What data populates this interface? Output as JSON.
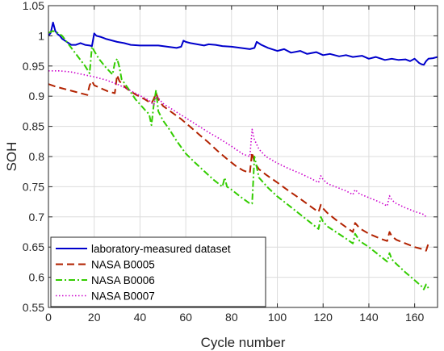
{
  "chart_data": {
    "type": "line",
    "title": "",
    "xlabel": "Cycle number",
    "ylabel": "SOH",
    "xlim": [
      0,
      170
    ],
    "ylim": [
      0.55,
      1.05
    ],
    "xticks": [
      0,
      20,
      40,
      60,
      80,
      100,
      120,
      140,
      160
    ],
    "yticks": [
      0.55,
      0.6,
      0.65,
      0.7,
      0.75,
      0.8,
      0.85,
      0.9,
      0.95,
      1,
      1.05
    ],
    "xtick_labels": [
      "0",
      "20",
      "40",
      "60",
      "80",
      "100",
      "120",
      "140",
      "160"
    ],
    "ytick_labels": [
      "0.55",
      "0.6",
      "0.65",
      "0.7",
      "0.75",
      "0.8",
      "0.85",
      "0.9",
      "0.95",
      "1",
      "1.05"
    ],
    "grid": true,
    "legend_position": "bottom-left",
    "series": [
      {
        "name": "laboratory-measured dataset",
        "color": "#0000cc",
        "dash": "solid",
        "x": [
          0,
          1,
          2,
          3,
          4,
          5,
          6,
          8,
          10,
          12,
          14,
          16,
          18,
          19,
          20,
          21,
          23,
          25,
          27,
          30,
          33,
          36,
          40,
          44,
          48,
          52,
          56,
          58,
          59,
          60,
          62,
          65,
          68,
          70,
          73,
          76,
          80,
          84,
          88,
          90,
          91,
          93,
          96,
          100,
          103,
          106,
          110,
          113,
          117,
          120,
          123,
          127,
          130,
          133,
          137,
          140,
          143,
          147,
          150,
          153,
          156,
          158,
          160,
          162,
          163,
          164,
          165,
          166,
          168,
          170
        ],
        "y": [
          1.0,
          1.005,
          1.022,
          1.008,
          1.003,
          1.0,
          0.995,
          0.99,
          0.985,
          0.985,
          0.988,
          0.985,
          0.984,
          0.983,
          1.004,
          1.0,
          0.998,
          0.995,
          0.993,
          0.99,
          0.988,
          0.985,
          0.984,
          0.984,
          0.984,
          0.982,
          0.98,
          0.982,
          0.992,
          0.99,
          0.988,
          0.986,
          0.984,
          0.986,
          0.985,
          0.983,
          0.982,
          0.98,
          0.978,
          0.98,
          0.99,
          0.985,
          0.98,
          0.975,
          0.978,
          0.972,
          0.975,
          0.97,
          0.973,
          0.968,
          0.97,
          0.966,
          0.968,
          0.965,
          0.967,
          0.962,
          0.965,
          0.96,
          0.962,
          0.96,
          0.961,
          0.958,
          0.962,
          0.955,
          0.953,
          0.952,
          0.958,
          0.962,
          0.963,
          0.965
        ]
      },
      {
        "name": "NASA B0005",
        "color": "#b22200",
        "dash": "dashed",
        "x": [
          0,
          3,
          6,
          10,
          14,
          17,
          18,
          19,
          20,
          23,
          26,
          29,
          30,
          31,
          34,
          38,
          42,
          45,
          46,
          47,
          48,
          50,
          54,
          58,
          62,
          66,
          70,
          74,
          78,
          82,
          85,
          88,
          89,
          90,
          92,
          95,
          100,
          105,
          110,
          115,
          118,
          119,
          120,
          122,
          126,
          130,
          133,
          134,
          136,
          140,
          145,
          148,
          149,
          150,
          152,
          156,
          160,
          164,
          165,
          166
        ],
        "y": [
          0.92,
          0.916,
          0.913,
          0.909,
          0.905,
          0.902,
          0.918,
          0.925,
          0.918,
          0.913,
          0.908,
          0.905,
          0.935,
          0.925,
          0.913,
          0.903,
          0.895,
          0.888,
          0.895,
          0.905,
          0.895,
          0.884,
          0.873,
          0.862,
          0.849,
          0.836,
          0.823,
          0.809,
          0.796,
          0.784,
          0.777,
          0.773,
          0.807,
          0.79,
          0.779,
          0.77,
          0.757,
          0.743,
          0.73,
          0.716,
          0.708,
          0.72,
          0.714,
          0.706,
          0.694,
          0.683,
          0.675,
          0.69,
          0.681,
          0.672,
          0.664,
          0.66,
          0.675,
          0.668,
          0.662,
          0.656,
          0.65,
          0.646,
          0.644,
          0.656
        ]
      },
      {
        "name": "NASA B0006",
        "color": "#33cc00",
        "dash": "dashdot",
        "x": [
          0,
          2,
          4,
          6,
          8,
          10,
          13,
          16,
          18,
          19,
          20,
          22,
          25,
          28,
          29,
          30,
          31,
          32,
          35,
          38,
          42,
          44,
          45,
          46,
          47,
          48,
          50,
          53,
          56,
          60,
          64,
          68,
          72,
          76,
          77,
          78,
          80,
          84,
          88,
          89,
          90,
          92,
          96,
          100,
          104,
          108,
          112,
          116,
          118,
          119,
          120,
          122,
          126,
          130,
          133,
          134,
          136,
          140,
          144,
          148,
          149,
          150,
          152,
          156,
          160,
          163,
          164,
          165,
          166
        ],
        "y": [
          1.005,
          1.008,
          1.005,
          1.0,
          0.99,
          0.98,
          0.965,
          0.95,
          0.938,
          0.982,
          0.975,
          0.962,
          0.948,
          0.936,
          0.955,
          0.962,
          0.948,
          0.928,
          0.912,
          0.895,
          0.878,
          0.87,
          0.852,
          0.885,
          0.91,
          0.875,
          0.86,
          0.844,
          0.826,
          0.805,
          0.79,
          0.776,
          0.762,
          0.75,
          0.765,
          0.75,
          0.745,
          0.733,
          0.722,
          0.722,
          0.8,
          0.765,
          0.748,
          0.734,
          0.722,
          0.71,
          0.698,
          0.686,
          0.68,
          0.7,
          0.692,
          0.684,
          0.674,
          0.664,
          0.656,
          0.672,
          0.66,
          0.65,
          0.638,
          0.626,
          0.64,
          0.63,
          0.622,
          0.608,
          0.595,
          0.585,
          0.58,
          0.588,
          0.582
        ]
      },
      {
        "name": "NASA B0007",
        "color": "#cc00cc",
        "dash": "dotted",
        "x": [
          0,
          5,
          10,
          15,
          20,
          25,
          30,
          35,
          40,
          44,
          46,
          47,
          48,
          50,
          55,
          60,
          65,
          70,
          75,
          80,
          85,
          88,
          89,
          90,
          92,
          95,
          100,
          105,
          110,
          115,
          118,
          119,
          120,
          122,
          126,
          130,
          133,
          134,
          136,
          140,
          145,
          148,
          149,
          150,
          152,
          156,
          160,
          164,
          165
        ],
        "y": [
          0.942,
          0.942,
          0.94,
          0.936,
          0.932,
          0.927,
          0.92,
          0.911,
          0.901,
          0.893,
          0.885,
          0.9,
          0.897,
          0.888,
          0.876,
          0.864,
          0.852,
          0.84,
          0.829,
          0.817,
          0.804,
          0.8,
          0.845,
          0.828,
          0.812,
          0.8,
          0.789,
          0.78,
          0.772,
          0.763,
          0.757,
          0.768,
          0.762,
          0.755,
          0.749,
          0.743,
          0.737,
          0.745,
          0.738,
          0.732,
          0.724,
          0.718,
          0.735,
          0.728,
          0.722,
          0.715,
          0.709,
          0.704,
          0.7
        ]
      }
    ]
  }
}
